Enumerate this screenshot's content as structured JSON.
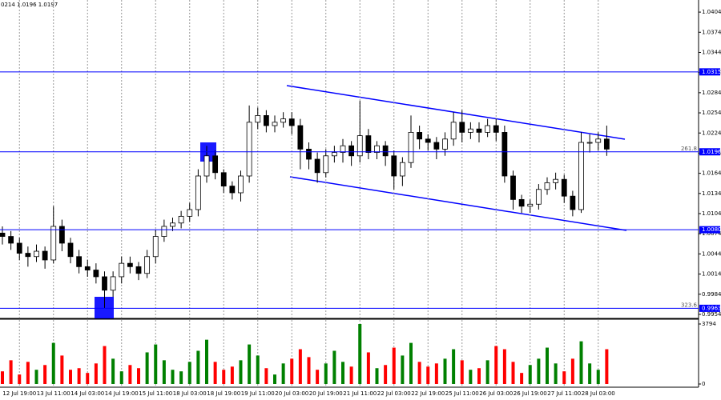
{
  "header": "0214 1.0196 1.0197",
  "chart_data": [
    {
      "type": "candlestick",
      "categories": [
        null,
        null,
        "12 Jul 19:00",
        null,
        null,
        null,
        "13 Jul 11:00",
        null,
        null,
        null,
        "14 Jul 03:00",
        null,
        null,
        null,
        "14 Jul 19:00",
        null,
        null,
        null,
        "15 Jul 11:00",
        null,
        null,
        null,
        "18 Jul 03:00",
        null,
        null,
        null,
        "18 Jul 19:00",
        null,
        null,
        null,
        "19 Jul 11:00",
        null,
        null,
        null,
        "20 Jul 03:00",
        null,
        null,
        null,
        "20 Jul 19:00",
        null,
        null,
        null,
        "21 Jul 11:00",
        null,
        null,
        null,
        "22 Jul 03:00",
        null,
        null,
        null,
        "22 Jul 19:00",
        null,
        null,
        null,
        "25 Jul 11:00",
        null,
        null,
        null,
        "26 Jul 03:00",
        null,
        null,
        null,
        "26 Jul 19:00",
        null,
        null,
        null,
        "27 Jul 11:00",
        null,
        null,
        null,
        "28 Jul 03:00",
        null
      ],
      "open": [
        1.0075,
        1.007,
        1.006,
        1.0045,
        1.004,
        1.0048,
        1.0035,
        1.0085,
        1.006,
        1.004,
        1.0025,
        1.002,
        1.001,
        0.999,
        1.001,
        1.003,
        1.0025,
        1.0015,
        1.004,
        1.007,
        1.0085,
        1.009,
        1.01,
        1.011,
        1.016,
        1.019,
        1.0165,
        1.0145,
        1.0135,
        1.016,
        1.024,
        1.025,
        1.0235,
        1.024,
        1.0245,
        1.0235,
        1.02,
        1.0185,
        1.0165,
        1.019,
        1.0195,
        1.0205,
        1.019,
        1.022,
        1.0195,
        1.0205,
        1.019,
        1.016,
        1.018,
        1.0225,
        1.0215,
        1.021,
        1.02,
        1.0215,
        1.024,
        1.0225,
        1.023,
        1.0225,
        1.0235,
        1.0225,
        1.016,
        1.0125,
        1.0115,
        1.0118,
        1.014,
        1.015,
        1.0155,
        1.013,
        1.011,
        1.021,
        1.021,
        1.0215
      ],
      "high": [
        1.0085,
        1.0078,
        1.0068,
        1.0055,
        1.0058,
        1.0055,
        1.0115,
        1.0095,
        1.0068,
        1.005,
        1.0035,
        1.003,
        1.0018,
        1.0018,
        1.004,
        1.004,
        1.0032,
        1.005,
        1.008,
        1.0095,
        1.0098,
        1.0108,
        1.012,
        1.017,
        1.0205,
        1.0198,
        1.017,
        1.0152,
        1.0168,
        1.0265,
        1.0262,
        1.0258,
        1.025,
        1.0255,
        1.0255,
        1.0245,
        1.021,
        1.0195,
        1.02,
        1.0205,
        1.0215,
        1.0212,
        1.0272,
        1.023,
        1.0212,
        1.0212,
        1.0198,
        1.0188,
        1.025,
        1.0235,
        1.0222,
        1.0218,
        1.0225,
        1.0255,
        1.0258,
        1.024,
        1.024,
        1.0245,
        1.0245,
        1.0235,
        1.0168,
        1.0132,
        1.0125,
        1.0148,
        1.0158,
        1.0165,
        1.0162,
        1.0138,
        1.0225,
        1.0222,
        1.0225,
        1.0235
      ],
      "low": [
        1.0058,
        1.005,
        1.0035,
        1.0025,
        1.0032,
        1.0022,
        1.003,
        1.0048,
        1.003,
        1.0015,
        1.001,
        1.0,
        0.9963,
        0.998,
        1.0,
        1.0015,
        1.0005,
        1.0008,
        1.003,
        1.0062,
        1.0078,
        1.0082,
        1.0092,
        1.01,
        1.015,
        1.0155,
        1.0135,
        1.0125,
        1.0122,
        1.015,
        1.023,
        1.0225,
        1.0225,
        1.0232,
        1.0222,
        1.017,
        1.017,
        1.015,
        1.0158,
        1.018,
        1.018,
        1.0175,
        1.018,
        1.0185,
        1.0185,
        1.0175,
        1.014,
        1.0145,
        1.0172,
        1.02,
        1.0198,
        1.0185,
        1.019,
        1.0205,
        1.021,
        1.0215,
        1.021,
        1.0218,
        1.0212,
        1.015,
        1.011,
        1.0105,
        1.0105,
        1.011,
        1.0132,
        1.014,
        1.012,
        1.01,
        1.0105,
        1.0195,
        1.0198,
        1.019
      ],
      "close": [
        1.007,
        1.006,
        1.0045,
        1.004,
        1.0048,
        1.0035,
        1.0085,
        1.006,
        1.004,
        1.0025,
        1.002,
        1.001,
        0.999,
        1.001,
        1.003,
        1.0025,
        1.0015,
        1.004,
        1.007,
        1.0085,
        1.009,
        1.01,
        1.011,
        1.016,
        1.019,
        1.0165,
        1.0145,
        1.0135,
        1.016,
        1.024,
        1.025,
        1.0235,
        1.024,
        1.0245,
        1.0235,
        1.02,
        1.0185,
        1.0165,
        1.019,
        1.0195,
        1.0205,
        1.019,
        1.022,
        1.0195,
        1.0205,
        1.019,
        1.016,
        1.018,
        1.0225,
        1.0215,
        1.021,
        1.02,
        1.0215,
        1.024,
        1.0225,
        1.023,
        1.0225,
        1.0235,
        1.0225,
        1.016,
        1.0125,
        1.0115,
        1.0118,
        1.014,
        1.015,
        1.0155,
        1.013,
        1.011,
        1.021,
        1.021,
        1.0215,
        1.02
      ],
      "up_color": "#ffffff",
      "down_color": "#000000",
      "ylim": [
        0.9948,
        1.0422
      ],
      "yticks": [
        1.0404,
        1.0374,
        1.0344,
        1.0314,
        1.0284,
        1.0254,
        1.0224,
        1.0194,
        1.0164,
        1.0134,
        1.0104,
        1.0074,
        1.0044,
        1.0014,
        0.9984,
        0.9954
      ],
      "hlines": [
        1.0315,
        1.0196,
        {
          "value": 1.008,
          "label": "1.0080"
        },
        0.9963
      ],
      "hline_notes": [
        null,
        "261.8",
        null,
        "323.6"
      ],
      "hline_color": "#0000ff"
    },
    {
      "type": "volume",
      "values": [
        800,
        1500,
        600,
        1400,
        900,
        1200,
        2600,
        1800,
        900,
        1000,
        700,
        1300,
        2400,
        1600,
        800,
        1200,
        1000,
        2000,
        2500,
        1500,
        900,
        800,
        1400,
        2100,
        2800,
        1400,
        900,
        1100,
        1500,
        2500,
        1800,
        1000,
        600,
        1300,
        1600,
        2200,
        1700,
        900,
        1300,
        2100,
        1400,
        1100,
        3794,
        2000,
        1000,
        1200,
        2300,
        1800,
        2600,
        1400,
        1100,
        1300,
        1600,
        2200,
        1500,
        900,
        1000,
        1500,
        2400,
        2200,
        1400,
        700,
        1200,
        1600,
        2300,
        1300,
        800,
        1600,
        2700,
        1300,
        900,
        2200
      ],
      "up_color": "#008000",
      "down_color": "#ff0000",
      "ylim": [
        0,
        3794
      ],
      "yticks": [
        0,
        3794
      ]
    }
  ]
}
